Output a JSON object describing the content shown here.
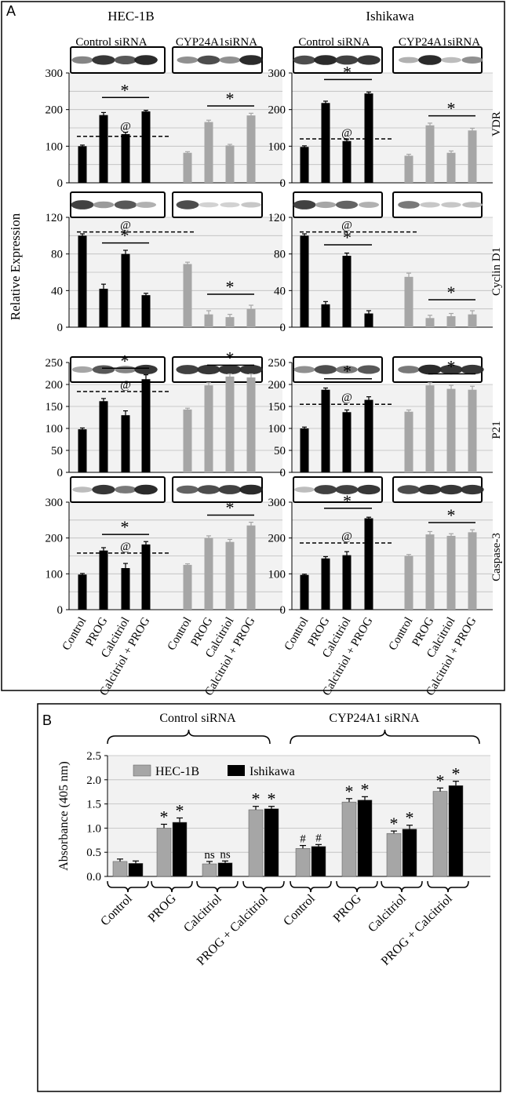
{
  "panel_a": {
    "label": "A",
    "ylabel": "Relative Expression",
    "cells": [
      "HEC-1B",
      "Ishikawa"
    ],
    "group_labels": [
      "Control siRNA",
      "CYP24A1siRNA"
    ],
    "categories": [
      "Control",
      "PROG",
      "Calcitriol",
      "Calcitriol + PROG"
    ],
    "markers": {
      "star": "*",
      "at": "@"
    }
  },
  "panel_b": {
    "label": "B",
    "group_labels": [
      "Control siRNA",
      "CYP24A1 siRNA"
    ]
  },
  "colors": {
    "black": "#000000",
    "gray": "#a6a6a6",
    "plot_bg": "#f2f2f2",
    "grid": "#bdbdbd"
  },
  "chart_data": [
    {
      "id": "A-VDR-HEC1B",
      "type": "bar",
      "title": "VDR",
      "cell": "HEC-1B",
      "categories": [
        "Control",
        "PROG",
        "Calcitriol",
        "Calcitriol + PROG"
      ],
      "series": [
        {
          "name": "Control siRNA",
          "color": "#000000",
          "values": [
            100,
            185,
            133,
            195
          ],
          "errors": [
            3,
            7,
            5,
            3
          ]
        },
        {
          "name": "CYP24A1siRNA",
          "color": "#a6a6a6",
          "values": [
            82,
            166,
            102,
            184
          ],
          "errors": [
            3,
            5,
            3,
            6
          ]
        }
      ],
      "ylim": [
        0,
        300
      ],
      "yticks": [
        0,
        100,
        200,
        300
      ],
      "minor": [
        50,
        150,
        250
      ],
      "dashed": 127,
      "markers": [
        "*",
        "@",
        "*"
      ]
    },
    {
      "id": "A-VDR-ISH",
      "type": "bar",
      "title": "VDR",
      "cell": "Ishikawa",
      "categories": [
        "Control",
        "PROG",
        "Calcitriol",
        "Calcitriol + PROG"
      ],
      "series": [
        {
          "name": "Control siRNA",
          "color": "#000000",
          "values": [
            98,
            218,
            114,
            244
          ],
          "errors": [
            3,
            5,
            4,
            4
          ]
        },
        {
          "name": "CYP24A1siRNA",
          "color": "#a6a6a6",
          "values": [
            74,
            157,
            82,
            143
          ],
          "errors": [
            4,
            6,
            5,
            6
          ]
        }
      ],
      "ylim": [
        0,
        300
      ],
      "yticks": [
        0,
        100,
        200,
        300
      ],
      "minor": [
        50,
        150,
        250
      ],
      "dashed": 120,
      "markers": [
        "*",
        "@",
        "*"
      ]
    },
    {
      "id": "A-CCND1-HEC1B",
      "type": "bar",
      "title": "Cyclin D1",
      "cell": "HEC-1B",
      "categories": [
        "Control",
        "PROG",
        "Calcitriol",
        "Calcitriol + PROG"
      ],
      "series": [
        {
          "name": "Control siRNA",
          "color": "#000000",
          "values": [
            100,
            42,
            80,
            35
          ],
          "errors": [
            2,
            5,
            4,
            2
          ]
        },
        {
          "name": "CYP24A1siRNA",
          "color": "#a6a6a6",
          "values": [
            69,
            14,
            11,
            20
          ],
          "errors": [
            2,
            4,
            3,
            4
          ]
        }
      ],
      "ylim": [
        0,
        120
      ],
      "yticks": [
        0,
        40,
        80,
        120
      ],
      "minor": [
        20,
        60,
        100
      ],
      "dashed": 104,
      "markers": [
        "@",
        "*",
        "*"
      ]
    },
    {
      "id": "A-CCND1-ISH",
      "type": "bar",
      "title": "Cyclin D1",
      "cell": "Ishikawa",
      "categories": [
        "Control",
        "PROG",
        "Calcitriol",
        "Calcitriol + PROG"
      ],
      "series": [
        {
          "name": "Control siRNA",
          "color": "#000000",
          "values": [
            100,
            25,
            78,
            15
          ],
          "errors": [
            2,
            3,
            3,
            3
          ]
        },
        {
          "name": "CYP24A1siRNA",
          "color": "#a6a6a6",
          "values": [
            55,
            10,
            12,
            14
          ],
          "errors": [
            4,
            3,
            3,
            4
          ]
        }
      ],
      "ylim": [
        0,
        120
      ],
      "yticks": [
        0,
        40,
        80,
        120
      ],
      "minor": [
        20,
        60,
        100
      ],
      "dashed": 104,
      "markers": [
        "@",
        "*",
        "*"
      ]
    },
    {
      "id": "A-P21-HEC1B",
      "type": "bar",
      "title": "P21",
      "cell": "HEC-1B",
      "categories": [
        "Control",
        "PROG",
        "Calcitriol",
        "Calcitriol + PROG"
      ],
      "series": [
        {
          "name": "Control siRNA",
          "color": "#000000",
          "values": [
            98,
            162,
            130,
            212
          ],
          "errors": [
            3,
            6,
            10,
            10
          ]
        },
        {
          "name": "CYP24A1siRNA",
          "color": "#a6a6a6",
          "values": [
            143,
            198,
            218,
            216
          ],
          "errors": [
            3,
            6,
            6,
            8
          ]
        }
      ],
      "ylim": [
        0,
        250
      ],
      "yticks": [
        0,
        50,
        100,
        150,
        200,
        250
      ],
      "minor": [],
      "dashed": 184,
      "markers": [
        "*",
        "@",
        "*"
      ]
    },
    {
      "id": "A-P21-ISH",
      "type": "bar",
      "title": "P21",
      "cell": "Ishikawa",
      "categories": [
        "Control",
        "PROG",
        "Calcitriol",
        "Calcitriol + PROG"
      ],
      "series": [
        {
          "name": "Control siRNA",
          "color": "#000000",
          "values": [
            100,
            188,
            137,
            165
          ],
          "errors": [
            3,
            4,
            5,
            7
          ]
        },
        {
          "name": "CYP24A1siRNA",
          "color": "#a6a6a6",
          "values": [
            138,
            198,
            190,
            188
          ],
          "errors": [
            4,
            6,
            8,
            8
          ]
        }
      ],
      "ylim": [
        0,
        250
      ],
      "yticks": [
        0,
        50,
        100,
        150,
        200,
        250
      ],
      "minor": [],
      "dashed": 155,
      "markers": [
        "*",
        "@",
        "*"
      ]
    },
    {
      "id": "A-CASP3-HEC1B",
      "type": "bar",
      "title": "Caspase-3",
      "cell": "HEC-1B",
      "categories": [
        "Control",
        "PROG",
        "Calcitriol",
        "Calcitriol + PROG"
      ],
      "series": [
        {
          "name": "Control siRNA",
          "color": "#000000",
          "values": [
            98,
            165,
            116,
            182
          ],
          "errors": [
            3,
            8,
            13,
            8
          ]
        },
        {
          "name": "CYP24A1siRNA",
          "color": "#a6a6a6",
          "values": [
            125,
            200,
            189,
            235
          ],
          "errors": [
            3,
            6,
            7,
            9
          ]
        }
      ],
      "ylim": [
        0,
        300
      ],
      "yticks": [
        0,
        100,
        200,
        300
      ],
      "minor": [
        50,
        150,
        250
      ],
      "dashed": 158,
      "markers": [
        "*",
        "@",
        "*"
      ]
    },
    {
      "id": "A-CASP3-ISH",
      "type": "bar",
      "title": "Caspase-3",
      "cell": "Ishikawa",
      "categories": [
        "Control",
        "PROG",
        "Calcitriol",
        "Calcitriol + PROG"
      ],
      "series": [
        {
          "name": "Control siRNA",
          "color": "#000000",
          "values": [
            97,
            143,
            152,
            255
          ],
          "errors": [
            2,
            5,
            10,
            3
          ]
        },
        {
          "name": "CYP24A1siRNA",
          "color": "#a6a6a6",
          "values": [
            150,
            210,
            206,
            216
          ],
          "errors": [
            4,
            8,
            6,
            7
          ]
        }
      ],
      "ylim": [
        0,
        300
      ],
      "yticks": [
        0,
        100,
        200,
        300
      ],
      "minor": [
        50,
        150,
        250
      ],
      "dashed": 186,
      "markers": [
        "*",
        "@",
        "*"
      ]
    },
    {
      "id": "B",
      "type": "bar",
      "categories": [
        "Control",
        "PROG",
        "Calcitriol",
        "PROG + Calcitriol",
        "Control",
        "PROG",
        "Calcitriol",
        "PROG + Calcitriol"
      ],
      "series": [
        {
          "name": "HEC-1B",
          "color": "#a6a6a6",
          "values": [
            0.31,
            1.0,
            0.26,
            1.38,
            0.58,
            1.54,
            0.89,
            1.76
          ],
          "errors": [
            0.05,
            0.08,
            0.05,
            0.07,
            0.06,
            0.07,
            0.05,
            0.07
          ]
        },
        {
          "name": "Ishikawa",
          "color": "#000000",
          "values": [
            0.27,
            1.12,
            0.28,
            1.4,
            0.62,
            1.58,
            0.98,
            1.88
          ],
          "errors": [
            0.05,
            0.09,
            0.04,
            0.05,
            0.04,
            0.07,
            0.08,
            0.09
          ]
        }
      ],
      "annotations": [
        "",
        "*",
        "ns",
        "*",
        "#",
        "*",
        "*",
        "*"
      ],
      "ylabel": "Absorbance (405 nm)",
      "ylim": [
        0,
        2.5
      ],
      "yticks": [
        "0.0",
        "0.5",
        "1.0",
        "1.5",
        "2.0",
        "2.5"
      ],
      "legend": "top-left"
    }
  ]
}
